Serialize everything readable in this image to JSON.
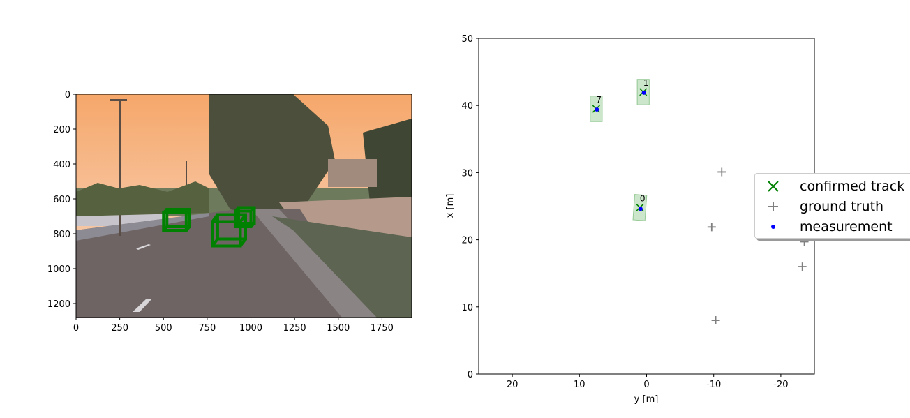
{
  "chart_data": [
    {
      "type": "image",
      "xlim": [
        0,
        1920
      ],
      "ylim": [
        1280,
        0
      ],
      "xticks": [
        "0",
        "250",
        "500",
        "750",
        "1000",
        "1250",
        "1500",
        "1750"
      ],
      "xtick_values": [
        0,
        250,
        500,
        750,
        1000,
        1250,
        1500,
        1750
      ],
      "yticks": [
        "0",
        "200",
        "400",
        "600",
        "800",
        "1000",
        "1200"
      ],
      "ytick_values": [
        0,
        200,
        400,
        600,
        800,
        1000,
        1200
      ],
      "boxes_color": "#008000",
      "boxes_3d": [
        {
          "x0": 500,
          "y0": 680,
          "x1": 630,
          "y1": 780,
          "ox": 20,
          "oy": -20
        },
        {
          "x0": 780,
          "y0": 730,
          "x1": 940,
          "y1": 870,
          "ox": 30,
          "oy": -40
        },
        {
          "x0": 910,
          "y0": 670,
          "x1": 1000,
          "y1": 760,
          "ox": 20,
          "oy": -20
        }
      ]
    },
    {
      "type": "scatter",
      "xlabel": "y [m]",
      "ylabel": "x [m]",
      "xlim": [
        25,
        -25
      ],
      "ylim": [
        0,
        50
      ],
      "xticks": [
        "20",
        "10",
        "0",
        "-10",
        "-20"
      ],
      "xtick_values": [
        20,
        10,
        0,
        -10,
        -20
      ],
      "yticks": [
        "0",
        "10",
        "20",
        "30",
        "40",
        "50"
      ],
      "ytick_values": [
        0,
        10,
        20,
        30,
        40,
        50
      ],
      "tracks": [
        {
          "id": "0",
          "y": 1.0,
          "x": 24.8,
          "angle": 4
        },
        {
          "id": "1",
          "y": 0.5,
          "x": 42.0,
          "angle": 0
        },
        {
          "id": "7",
          "y": 7.5,
          "x": 39.5,
          "angle": 0
        }
      ],
      "track_box": {
        "width": 1.8,
        "length": 3.8
      },
      "ground_truth": [
        {
          "y": -11.2,
          "x": 30.1
        },
        {
          "y": -9.7,
          "x": 21.9
        },
        {
          "y": -23.5,
          "x": 19.7
        },
        {
          "y": -23.2,
          "x": 16.0
        },
        {
          "y": -10.3,
          "x": 8.0
        }
      ],
      "measurements": [
        {
          "y": 0.9,
          "x": 24.6
        },
        {
          "y": 0.4,
          "x": 41.9
        },
        {
          "y": 7.4,
          "x": 39.4
        }
      ],
      "colors": {
        "track": "#008000",
        "ground_truth": "#808080",
        "measurement": "#0000ff",
        "box_fill": "#008000"
      },
      "legend": {
        "placement": "right",
        "entries": [
          {
            "label": "confirmed track",
            "marker": "x-icon"
          },
          {
            "label": "ground truth",
            "marker": "plus-icon"
          },
          {
            "label": "measurement",
            "marker": "dot-icon"
          }
        ]
      }
    }
  ]
}
